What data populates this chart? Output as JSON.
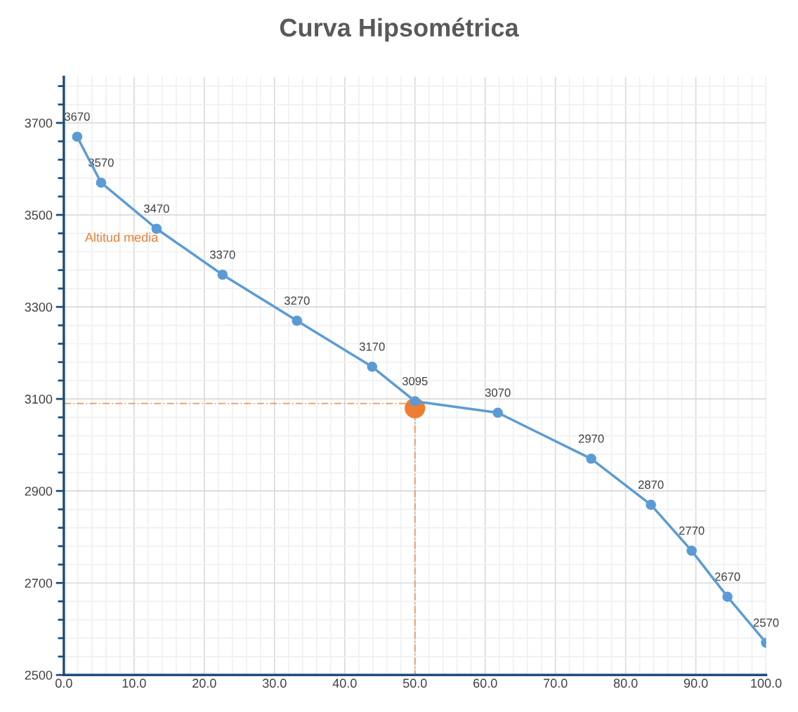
{
  "chart_data": {
    "type": "line",
    "title": "Curva Hipsométrica",
    "xlim": [
      0,
      100
    ],
    "xticks": [
      {
        "value": 0,
        "label": "0.0"
      },
      {
        "value": 10,
        "label": "10.0"
      },
      {
        "value": 20,
        "label": "20.0"
      },
      {
        "value": 30,
        "label": "30.0"
      },
      {
        "value": 40,
        "label": "40.0"
      },
      {
        "value": 50,
        "label": "50.0"
      },
      {
        "value": 60,
        "label": "60.0"
      },
      {
        "value": 70,
        "label": "70.0"
      },
      {
        "value": 80,
        "label": "80.0"
      },
      {
        "value": 90,
        "label": "90.0"
      },
      {
        "value": 100,
        "label": "100.0"
      }
    ],
    "ylim": [
      2500,
      3800
    ],
    "yticks": [
      2500,
      2700,
      2900,
      3100,
      3300,
      3500,
      3700
    ],
    "grid": true,
    "marker": "circle",
    "series": [
      {
        "color": "#5b9bd5",
        "data_labels": true,
        "x": [
          1.9,
          5.3,
          13.2,
          22.6,
          33.2,
          43.9,
          50.0,
          61.8,
          75.1,
          83.6,
          89.4,
          94.5,
          100.0
        ],
        "values": [
          3670,
          3570,
          3470,
          3370,
          3270,
          3170,
          3095,
          3070,
          2970,
          2870,
          2770,
          2670,
          2570
        ]
      },
      {
        "type": "line",
        "color": "#ed7d31",
        "line_style": "dashed",
        "marker": "none",
        "x": [
          0,
          50,
          50
        ],
        "values": [
          3090,
          3090,
          2500
        ]
      },
      {
        "type": "scatter",
        "color": "#ed7d31",
        "x": [
          50
        ],
        "values": [
          3080
        ]
      }
    ],
    "annotations": [
      "Altitud media"
    ]
  }
}
